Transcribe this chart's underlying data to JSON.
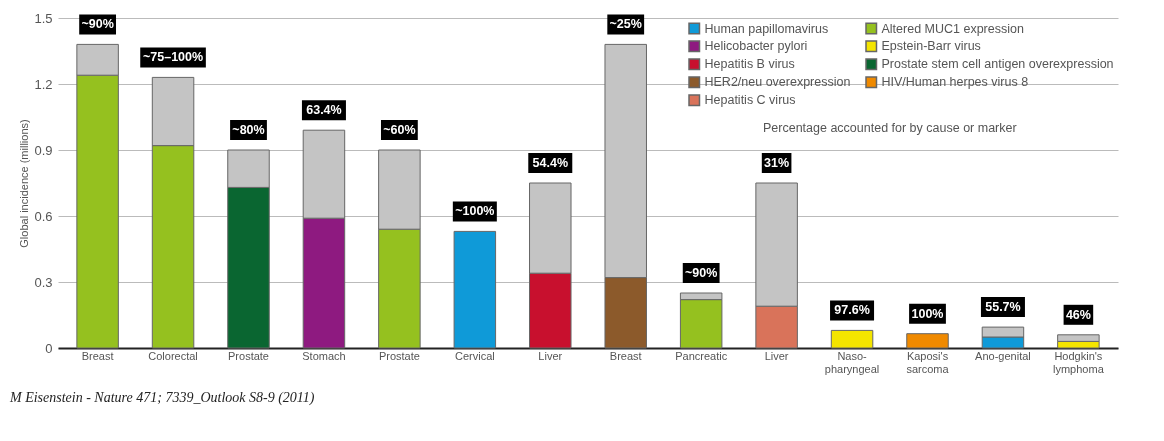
{
  "chart_data": {
    "type": "bar",
    "stacked": true,
    "ylabel": "Global incidence (millions)",
    "categories": [
      "Breast",
      "Colorectal",
      "Prostate",
      "Stomach",
      "Prostate",
      "Cervical",
      "Liver",
      "Breast",
      "Pancreatic",
      "Liver",
      "Naso-\npharyngeal",
      "Kaposi's\nsarcoma",
      "Ano-genital",
      "Hodgkin's\nlymphoma"
    ],
    "series": [
      {
        "name": "Human papillomavirus",
        "color": "#0f9ad8",
        "values": [
          null,
          null,
          null,
          null,
          null,
          0.53,
          null,
          null,
          null,
          null,
          null,
          null,
          0.05,
          null
        ]
      },
      {
        "name": "Hepatitis B virus",
        "color": "#c8102e",
        "values": [
          null,
          null,
          null,
          null,
          null,
          null,
          0.34,
          null,
          null,
          null,
          null,
          null,
          null,
          null
        ]
      },
      {
        "name": "Hepatitis C virus",
        "color": "#d9735a",
        "values": [
          null,
          null,
          null,
          null,
          null,
          null,
          null,
          null,
          null,
          0.19,
          null,
          null,
          null,
          null
        ]
      },
      {
        "name": "Epstein-Barr virus",
        "color": "#f4e500",
        "values": [
          null,
          null,
          null,
          null,
          null,
          null,
          null,
          null,
          null,
          null,
          0.08,
          null,
          null,
          0.03
        ]
      },
      {
        "name": "HIV/Human herpes virus 8",
        "color": "#f08a00",
        "values": [
          null,
          null,
          null,
          null,
          null,
          null,
          null,
          null,
          null,
          null,
          null,
          0.065,
          null,
          null
        ]
      },
      {
        "name": "Helicobacter pylori",
        "color": "#8e1a80",
        "values": [
          null,
          null,
          null,
          0.59,
          null,
          null,
          null,
          null,
          null,
          null,
          null,
          null,
          null,
          null
        ]
      },
      {
        "name": "HER2/neu overexpression",
        "color": "#8c5a2b",
        "values": [
          null,
          null,
          null,
          null,
          null,
          null,
          null,
          0.32,
          null,
          null,
          null,
          null,
          null,
          null
        ]
      },
      {
        "name": "Altered MUC1 expression",
        "color": "#95c11f",
        "values": [
          1.24,
          0.92,
          null,
          null,
          0.54,
          null,
          null,
          null,
          0.22,
          null,
          null,
          null,
          null,
          null
        ]
      },
      {
        "name": "Prostate stem cell antigen overexpression",
        "color": "#0a6631",
        "values": [
          null,
          null,
          0.73,
          null,
          null,
          null,
          null,
          null,
          null,
          null,
          null,
          null,
          null,
          null
        ]
      },
      {
        "color": "#c4c4c4",
        "values": [
          0.14,
          0.31,
          0.17,
          0.4,
          0.36,
          null,
          0.41,
          1.06,
          0.03,
          0.56,
          null,
          null,
          0.045,
          0.03
        ]
      }
    ],
    "ylim": [
      0,
      1.5
    ],
    "yticks": [
      0,
      0.3,
      0.6,
      0.9,
      1.2,
      1.5
    ],
    "grid": "y",
    "legend": "top right",
    "annotations": [
      "Percentage accounted for by cause or marker",
      "M Eisenstein - Nature 471; 7339_Outlook S8-9 (2011)",
      {
        "text": "~90%",
        "x": "Breast",
        "y": 1.38
      },
      {
        "text": "~75–100%",
        "x": "Colorectal",
        "y": 1.23
      },
      {
        "text": "~80%",
        "x": "Prostate",
        "y": 0.9
      },
      {
        "text": "63.4%",
        "x": "Stomach",
        "y": 0.99
      },
      "~60%",
      {
        "text": "~100%",
        "x": "Cervical",
        "y": 0.53
      },
      {
        "text": "54.4%",
        "x": "Liver",
        "y": 0.75
      },
      "~25%",
      {
        "text": "~90%",
        "x": "Pancreatic",
        "y": 0.25
      },
      "31%",
      {
        "text": "97.6%",
        "x": "Naso-\npharyngeal",
        "y": 0.08
      },
      {
        "text": "100%",
        "x": "Kaposi's\nsarcoma",
        "y": 0.065
      },
      {
        "text": "55.7%",
        "x": "Ano-genital",
        "y": 0.095
      },
      {
        "text": "46%",
        "x": "Hodgkin's\nlymphoma",
        "y": 0.06
      }
    ]
  }
}
